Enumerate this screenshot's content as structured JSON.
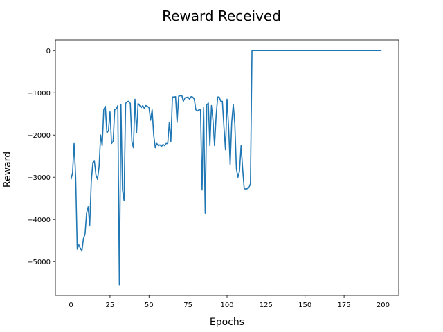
{
  "chart_data": {
    "type": "line",
    "title": "Reward Received",
    "xlabel": "Epochs",
    "ylabel": "Reward",
    "xlim": [
      -10,
      210
    ],
    "ylim": [
      -5800,
      250
    ],
    "xticks": [
      0,
      25,
      50,
      75,
      100,
      125,
      150,
      175,
      200
    ],
    "yticks": [
      0,
      -1000,
      -2000,
      -3000,
      -4000,
      -5000
    ],
    "ytick_labels": [
      "0",
      "−1000",
      "−2000",
      "−3000",
      "−4000",
      "−5000"
    ],
    "grid": false,
    "line_color": "#1f77b4",
    "series": [
      {
        "x": [
          0,
          1,
          2,
          3,
          4,
          5,
          6,
          7,
          8,
          9,
          10,
          11,
          12,
          13,
          14,
          15,
          16,
          17,
          18,
          19,
          20,
          21,
          22,
          23,
          24,
          25,
          26,
          27,
          28,
          29,
          30,
          31,
          32,
          33,
          34,
          35,
          36,
          37,
          38,
          39,
          40,
          41,
          42,
          43,
          44,
          45,
          46,
          47,
          48,
          49,
          50,
          51,
          52,
          53,
          54,
          55,
          56,
          57,
          58,
          59,
          60,
          61,
          62,
          63,
          64,
          65,
          66,
          67,
          68,
          69,
          70,
          71,
          72,
          73,
          74,
          75,
          76,
          77,
          78,
          79,
          80,
          81,
          82,
          83,
          84,
          85,
          86,
          87,
          88,
          89,
          90,
          91,
          92,
          93,
          94,
          95,
          96,
          97,
          98,
          99,
          100,
          101,
          102,
          103,
          104,
          105,
          106,
          107,
          108,
          109,
          110,
          111,
          112,
          113,
          114,
          115,
          116,
          199
        ],
        "values": [
          -3050,
          -2900,
          -2200,
          -3000,
          -4700,
          -4600,
          -4680,
          -4750,
          -4450,
          -4350,
          -3850,
          -3700,
          -4150,
          -3100,
          -2650,
          -2620,
          -2950,
          -3050,
          -2750,
          -2000,
          -2250,
          -1400,
          -1320,
          -1950,
          -1900,
          -1450,
          -2200,
          -2150,
          -1400,
          -1380,
          -1300,
          -5550,
          -1270,
          -3300,
          -3550,
          -1250,
          -1210,
          -1200,
          -1250,
          -2150,
          -2300,
          -1150,
          -1950,
          -1250,
          -1300,
          -1350,
          -1300,
          -1370,
          -1300,
          -1320,
          -1350,
          -1650,
          -1400,
          -2000,
          -2300,
          -2200,
          -2250,
          -2230,
          -2270,
          -2220,
          -2250,
          -2200,
          -2200,
          -1700,
          -2150,
          -1100,
          -1100,
          -1090,
          -1700,
          -1080,
          -1070,
          -1060,
          -1200,
          -1120,
          -1110,
          -1100,
          -1150,
          -1090,
          -1100,
          -1150,
          -1400,
          -1430,
          -1400,
          -1400,
          -3300,
          -1350,
          -3850,
          -1290,
          -1240,
          -2250,
          -1300,
          -1650,
          -2250,
          -1550,
          -1100,
          -1100,
          -1200,
          -1200,
          -1800,
          -2350,
          -1150,
          -1800,
          -2700,
          -1700,
          -1270,
          -1750,
          -2800,
          -3000,
          -2850,
          -2250,
          -2800,
          -3270,
          -3280,
          -3270,
          -3250,
          -3150,
          0,
          0
        ]
      }
    ]
  }
}
